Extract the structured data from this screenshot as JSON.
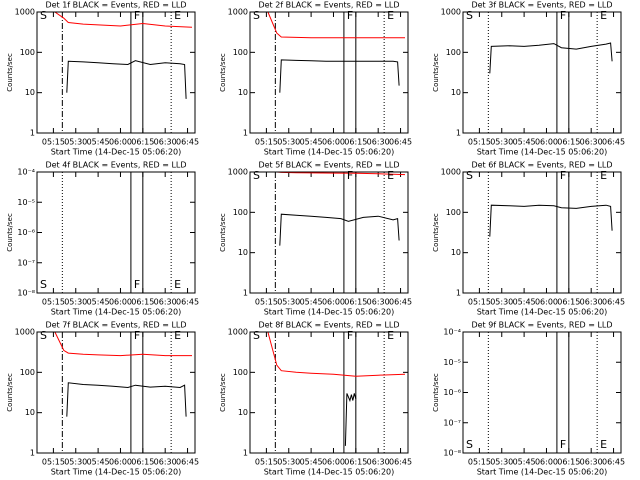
{
  "chart_data": [
    {
      "type": "line",
      "title": "Det 1f BLACK = Events, RED = LLD",
      "ylabel": "Counts/sec",
      "xlabel": "Start Time (14-Dec-15 05:06:20)",
      "xlim": [
        "05:04",
        "06:50"
      ],
      "xticks": [
        "05:15",
        "05:30",
        "05:45",
        "06:00",
        "06:15",
        "06:30",
        "06:45"
      ],
      "ylim": [
        1,
        1000
      ],
      "yticks": [
        1,
        10,
        100,
        1000
      ],
      "log_y": true,
      "vlines": [
        {
          "x": "05:21",
          "style": "dashdot"
        },
        {
          "x": "06:07",
          "style": "solid"
        },
        {
          "x": "06:15",
          "style": "solid"
        },
        {
          "x": "06:34",
          "style": "dotted"
        }
      ],
      "annotations": [
        {
          "text": "S",
          "x": "05:06"
        },
        {
          "text": "F",
          "x": "06:09"
        },
        {
          "text": "E",
          "x": "06:36"
        }
      ],
      "annotation_position": "top",
      "series": [
        {
          "color": "#000000",
          "x": [
            "05:24",
            "05:25",
            "05:35",
            "05:45",
            "05:55",
            "06:05",
            "06:10",
            "06:20",
            "06:30",
            "06:40",
            "06:43",
            "06:44"
          ],
          "values": [
            10,
            60,
            58,
            55,
            52,
            50,
            62,
            50,
            55,
            52,
            50,
            7
          ]
        },
        {
          "color": "#ff0000",
          "x": [
            "05:16",
            "05:22",
            "05:25",
            "05:35",
            "05:45",
            "06:00",
            "06:15",
            "06:30",
            "06:48"
          ],
          "values": [
            1000,
            700,
            550,
            500,
            480,
            450,
            520,
            450,
            420
          ]
        }
      ]
    },
    {
      "type": "line",
      "title": "Det 2f BLACK = Events, RED = LLD",
      "ylabel": "Counts/sec",
      "xlabel": "Start Time (14-Dec-15 05:06:20)",
      "xlim": [
        "05:04",
        "06:50"
      ],
      "xticks": [
        "05:15",
        "05:30",
        "05:45",
        "06:00",
        "06:15",
        "06:30",
        "06:45"
      ],
      "ylim": [
        1,
        1000
      ],
      "yticks": [
        1,
        10,
        100,
        1000
      ],
      "log_y": true,
      "vlines": [
        {
          "x": "05:21",
          "style": "dashdot"
        },
        {
          "x": "06:07",
          "style": "solid"
        },
        {
          "x": "06:15",
          "style": "solid"
        },
        {
          "x": "06:34",
          "style": "dotted"
        }
      ],
      "annotations": [
        {
          "text": "S",
          "x": "05:06"
        },
        {
          "text": "F",
          "x": "06:09"
        },
        {
          "text": "E",
          "x": "06:36"
        }
      ],
      "annotation_position": "top",
      "series": [
        {
          "color": "#000000",
          "x": [
            "05:24",
            "05:25",
            "05:35",
            "05:45",
            "05:55",
            "06:05",
            "06:10",
            "06:20",
            "06:30",
            "06:40",
            "06:43",
            "06:44"
          ],
          "values": [
            10,
            65,
            63,
            62,
            60,
            60,
            60,
            60,
            60,
            60,
            58,
            15
          ]
        },
        {
          "color": "#ff0000",
          "x": [
            "05:16",
            "05:22",
            "05:25",
            "05:35",
            "05:45",
            "06:00",
            "06:15",
            "06:30",
            "06:48"
          ],
          "values": [
            1000,
            300,
            240,
            235,
            230,
            230,
            230,
            230,
            230
          ]
        }
      ]
    },
    {
      "type": "line",
      "title": "Det 3f BLACK = Events, RED = LLD",
      "ylabel": "Counts/sec",
      "xlabel": "Start Time (14-Dec-15 05:06:20)",
      "xlim": [
        "05:04",
        "06:50"
      ],
      "xticks": [
        "05:15",
        "05:30",
        "05:45",
        "06:00",
        "06:15",
        "06:30",
        "06:45"
      ],
      "ylim": [
        1,
        1000
      ],
      "yticks": [
        1,
        10,
        100,
        1000
      ],
      "log_y": true,
      "vlines": [
        {
          "x": "05:21",
          "style": "dotted"
        },
        {
          "x": "06:07",
          "style": "solid"
        },
        {
          "x": "06:15",
          "style": "solid"
        },
        {
          "x": "06:34",
          "style": "dotted"
        }
      ],
      "annotations": [
        {
          "text": "S",
          "x": "05:06"
        },
        {
          "text": "F",
          "x": "06:09"
        },
        {
          "text": "E",
          "x": "06:36"
        }
      ],
      "annotation_position": "top",
      "series": [
        {
          "color": "#000000",
          "x": [
            "05:22",
            "05:23",
            "05:35",
            "05:45",
            "05:55",
            "06:05",
            "06:10",
            "06:20",
            "06:30",
            "06:40",
            "06:43",
            "06:44"
          ],
          "values": [
            30,
            140,
            145,
            140,
            150,
            165,
            130,
            120,
            140,
            160,
            170,
            60
          ]
        }
      ]
    },
    {
      "type": "line",
      "title": "Det 4f BLACK = Events, RED = LLD",
      "ylabel": "Counts/sec",
      "xlabel": "Start Time (14-Dec-15 05:06:20)",
      "xlim": [
        "05:04",
        "06:50"
      ],
      "xticks": [
        "05:15",
        "05:30",
        "05:45",
        "06:00",
        "06:15",
        "06:30",
        "06:45"
      ],
      "ylim": [
        1e-08,
        0.0001
      ],
      "yticks": [
        {
          "value": 1e-08,
          "label": "10⁻⁸"
        },
        {
          "value": 1e-07,
          "label": "10⁻⁷"
        },
        {
          "value": 1e-06,
          "label": "10⁻⁶"
        },
        {
          "value": 1e-05,
          "label": "10⁻⁵"
        },
        {
          "value": 0.0001,
          "label": "10⁻⁴"
        }
      ],
      "log_y": true,
      "vlines": [
        {
          "x": "05:21",
          "style": "dotted"
        },
        {
          "x": "06:07",
          "style": "solid"
        },
        {
          "x": "06:15",
          "style": "solid"
        },
        {
          "x": "06:34",
          "style": "dotted"
        }
      ],
      "annotations": [
        {
          "text": "S",
          "x": "05:06"
        },
        {
          "text": "F",
          "x": "06:09"
        },
        {
          "text": "E",
          "x": "06:36"
        }
      ],
      "annotation_position": "bottom",
      "series": []
    },
    {
      "type": "line",
      "title": "Det 5f BLACK = Events, RED = LLD",
      "ylabel": "Counts/sec",
      "xlabel": "Start Time (14-Dec-15 05:06:20)",
      "xlim": [
        "05:04",
        "06:50"
      ],
      "xticks": [
        "05:15",
        "05:30",
        "05:45",
        "06:00",
        "06:15",
        "06:30",
        "06:45"
      ],
      "ylim": [
        1,
        1000
      ],
      "yticks": [
        1,
        10,
        100,
        1000
      ],
      "log_y": true,
      "vlines": [
        {
          "x": "05:21",
          "style": "dashdot"
        },
        {
          "x": "06:07",
          "style": "solid"
        },
        {
          "x": "06:15",
          "style": "solid"
        },
        {
          "x": "06:34",
          "style": "dotted"
        }
      ],
      "annotations": [
        {
          "text": "S",
          "x": "05:06"
        },
        {
          "text": "F",
          "x": "06:09"
        },
        {
          "text": "E",
          "x": "06:36"
        }
      ],
      "annotation_position": "top",
      "series": [
        {
          "color": "#000000",
          "x": [
            "05:24",
            "05:25",
            "05:35",
            "05:45",
            "05:55",
            "06:05",
            "06:10",
            "06:20",
            "06:30",
            "06:40",
            "06:43",
            "06:44"
          ],
          "values": [
            15,
            90,
            85,
            80,
            75,
            70,
            60,
            75,
            80,
            65,
            70,
            20
          ]
        },
        {
          "color": "#ff0000",
          "x": [
            "05:16",
            "05:22",
            "05:25",
            "05:35",
            "05:45",
            "06:00",
            "06:15",
            "06:30",
            "06:48"
          ],
          "values": [
            1000,
            1000,
            980,
            960,
            950,
            940,
            930,
            900,
            860
          ]
        }
      ]
    },
    {
      "type": "line",
      "title": "Det 6f BLACK = Events, RED = LLD",
      "ylabel": "Counts/sec",
      "xlabel": "Start Time (14-Dec-15 05:06:20)",
      "xlim": [
        "05:04",
        "06:50"
      ],
      "xticks": [
        "05:15",
        "05:30",
        "05:45",
        "06:00",
        "06:15",
        "06:30",
        "06:45"
      ],
      "ylim": [
        1,
        1000
      ],
      "yticks": [
        1,
        10,
        100,
        1000
      ],
      "log_y": true,
      "vlines": [
        {
          "x": "05:21",
          "style": "dotted"
        },
        {
          "x": "06:07",
          "style": "solid"
        },
        {
          "x": "06:15",
          "style": "solid"
        },
        {
          "x": "06:34",
          "style": "dotted"
        }
      ],
      "annotations": [
        {
          "text": "S",
          "x": "05:06"
        },
        {
          "text": "F",
          "x": "06:09"
        },
        {
          "text": "E",
          "x": "06:36"
        }
      ],
      "annotation_position": "top",
      "series": [
        {
          "color": "#000000",
          "x": [
            "05:22",
            "05:23",
            "05:35",
            "05:45",
            "05:55",
            "06:05",
            "06:10",
            "06:20",
            "06:30",
            "06:40",
            "06:43",
            "06:44"
          ],
          "values": [
            25,
            150,
            145,
            140,
            150,
            145,
            130,
            125,
            140,
            150,
            140,
            35
          ]
        }
      ]
    },
    {
      "type": "line",
      "title": "Det 7f BLACK = Events, RED = LLD",
      "ylabel": "Counts/sec",
      "xlabel": "Start Time (14-Dec-15 05:06:20)",
      "xlim": [
        "05:04",
        "06:50"
      ],
      "xticks": [
        "05:15",
        "05:30",
        "05:45",
        "06:00",
        "06:15",
        "06:30",
        "06:45"
      ],
      "ylim": [
        1,
        1000
      ],
      "yticks": [
        1,
        10,
        100,
        1000
      ],
      "log_y": true,
      "vlines": [
        {
          "x": "05:21",
          "style": "dashdot"
        },
        {
          "x": "06:07",
          "style": "solid"
        },
        {
          "x": "06:15",
          "style": "solid"
        },
        {
          "x": "06:34",
          "style": "dotted"
        }
      ],
      "annotations": [
        {
          "text": "S",
          "x": "05:06"
        },
        {
          "text": "F",
          "x": "06:09"
        },
        {
          "text": "E",
          "x": "06:36"
        }
      ],
      "annotation_position": "top",
      "series": [
        {
          "color": "#000000",
          "x": [
            "05:24",
            "05:25",
            "05:35",
            "05:45",
            "05:55",
            "06:05",
            "06:10",
            "06:20",
            "06:30",
            "06:40",
            "06:43",
            "06:44"
          ],
          "values": [
            8,
            55,
            50,
            48,
            45,
            42,
            48,
            43,
            45,
            42,
            48,
            8
          ]
        },
        {
          "color": "#ff0000",
          "x": [
            "05:16",
            "05:22",
            "05:25",
            "05:35",
            "05:45",
            "06:00",
            "06:15",
            "06:30",
            "06:48"
          ],
          "values": [
            1000,
            350,
            300,
            280,
            270,
            260,
            280,
            260,
            260
          ]
        }
      ]
    },
    {
      "type": "line",
      "title": "Det 8f BLACK = Events, RED = LLD",
      "ylabel": "Counts/sec",
      "xlabel": "Start Time (14-Dec-15 05:06:20)",
      "xlim": [
        "05:04",
        "06:50"
      ],
      "xticks": [
        "05:15",
        "05:30",
        "05:45",
        "06:00",
        "06:15",
        "06:30",
        "06:45"
      ],
      "ylim": [
        1,
        1000
      ],
      "yticks": [
        1,
        10,
        100,
        1000
      ],
      "log_y": true,
      "vlines": [
        {
          "x": "05:21",
          "style": "dashdot"
        },
        {
          "x": "06:07",
          "style": "solid"
        },
        {
          "x": "06:15",
          "style": "solid"
        },
        {
          "x": "06:34",
          "style": "dotted"
        }
      ],
      "annotations": [
        {
          "text": "S",
          "x": "05:06"
        },
        {
          "text": "F",
          "x": "06:09"
        },
        {
          "text": "E",
          "x": "06:36"
        }
      ],
      "annotation_position": "top",
      "series": [
        {
          "color": "#000000",
          "x": [
            "06:08",
            "06:09",
            "06:11",
            "06:12",
            "06:13",
            "06:14",
            "06:15"
          ],
          "values": [
            1.5,
            30,
            20,
            28,
            20,
            30,
            22
          ]
        },
        {
          "color": "#ff0000",
          "x": [
            "05:16",
            "05:22",
            "05:25",
            "05:35",
            "05:45",
            "06:00",
            "06:15",
            "06:30",
            "06:48"
          ],
          "values": [
            1000,
            150,
            110,
            100,
            95,
            90,
            80,
            85,
            90
          ]
        }
      ]
    },
    {
      "type": "line",
      "title": "Det 9f BLACK = Events, RED = LLD",
      "ylabel": "Counts/sec",
      "xlabel": "Start Time (14-Dec-15 05:06:20)",
      "xlim": [
        "05:04",
        "06:50"
      ],
      "xticks": [
        "05:15",
        "05:30",
        "05:45",
        "06:00",
        "06:15",
        "06:30",
        "06:45"
      ],
      "ylim": [
        1e-08,
        0.0001
      ],
      "yticks": [
        {
          "value": 1e-08,
          "label": "10⁻⁸"
        },
        {
          "value": 1e-07,
          "label": "10⁻⁷"
        },
        {
          "value": 1e-06,
          "label": "10⁻⁶"
        },
        {
          "value": 1e-05,
          "label": "10⁻⁵"
        },
        {
          "value": 0.0001,
          "label": "10⁻⁴"
        }
      ],
      "log_y": true,
      "vlines": [
        {
          "x": "05:21",
          "style": "dotted"
        },
        {
          "x": "06:07",
          "style": "solid"
        },
        {
          "x": "06:15",
          "style": "solid"
        },
        {
          "x": "06:34",
          "style": "dotted"
        }
      ],
      "annotations": [
        {
          "text": "S",
          "x": "05:06"
        },
        {
          "text": "F",
          "x": "06:09"
        },
        {
          "text": "E",
          "x": "06:36"
        }
      ],
      "annotation_position": "bottom",
      "series": []
    }
  ]
}
